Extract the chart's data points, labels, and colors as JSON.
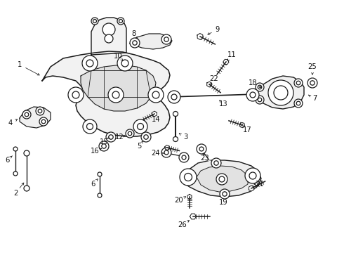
{
  "bg_color": "#ffffff",
  "line_color": "#1a1a1a",
  "label_color": "#111111",
  "figsize": [
    4.9,
    3.6
  ],
  "dpi": 100,
  "lw": 0.9,
  "label_fs": 7.2
}
